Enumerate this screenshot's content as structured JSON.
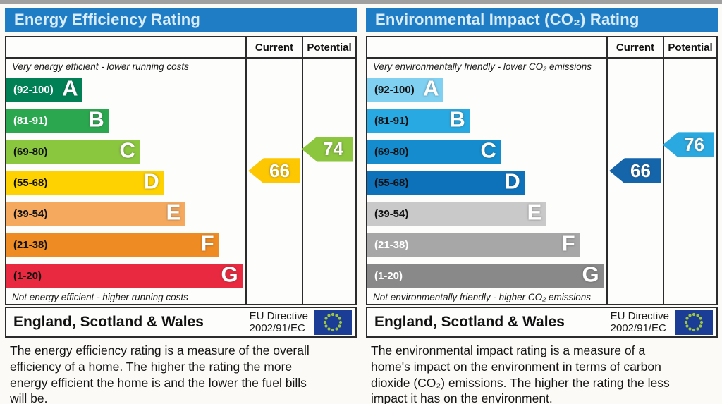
{
  "charts": [
    {
      "title": "Energy Efficiency Rating",
      "header": {
        "current": "Current",
        "potential": "Potential"
      },
      "top_note": "Very energy efficient - lower running costs",
      "bottom_note": "Not energy efficient - higher running costs",
      "bands": [
        {
          "letter": "A",
          "range": "(92-100)",
          "min": 92,
          "max": 100,
          "color": "#008054",
          "text_color": "#ffffff",
          "width_pct": 32
        },
        {
          "letter": "B",
          "range": "(81-91)",
          "min": 81,
          "max": 91,
          "color": "#2ba84f",
          "text_color": "#ffffff",
          "width_pct": 43
        },
        {
          "letter": "C",
          "range": "(69-80)",
          "min": 69,
          "max": 80,
          "color": "#8bc63f",
          "text_color": "#111111",
          "width_pct": 56
        },
        {
          "letter": "D",
          "range": "(55-68)",
          "min": 55,
          "max": 68,
          "color": "#fed200",
          "text_color": "#111111",
          "width_pct": 66
        },
        {
          "letter": "E",
          "range": "(39-54)",
          "min": 39,
          "max": 54,
          "color": "#f4a95f",
          "text_color": "#111111",
          "width_pct": 75
        },
        {
          "letter": "F",
          "range": "(21-38)",
          "min": 21,
          "max": 38,
          "color": "#ee8b22",
          "text_color": "#111111",
          "width_pct": 89
        },
        {
          "letter": "G",
          "range": "(1-20)",
          "min": 1,
          "max": 20,
          "color": "#e8293f",
          "text_color": "#111111",
          "width_pct": 99
        }
      ],
      "current": {
        "value": 66,
        "band": "D",
        "color": "#fdc702"
      },
      "potential": {
        "value": 74,
        "band": "C",
        "color": "#8cc63f"
      },
      "footer": {
        "region": "England, Scotland & Wales",
        "directive_line1": "EU Directive",
        "directive_line2": "2002/91/EC"
      },
      "description": "The energy efficiency rating is a measure of the overall efficiency of a home. The higher the rating the more energy efficient the home is and the lower the fuel bills will be."
    },
    {
      "title": "Environmental Impact (CO₂) Rating",
      "header": {
        "current": "Current",
        "potential": "Potential"
      },
      "top_note": "Very environmentally friendly - lower CO₂ emissions",
      "bottom_note": "Not environmentally friendly - higher CO₂ emissions",
      "bands": [
        {
          "letter": "A",
          "range": "(92-100)",
          "min": 92,
          "max": 100,
          "color": "#7fd0f1",
          "text_color": "#111111",
          "width_pct": 32
        },
        {
          "letter": "B",
          "range": "(81-91)",
          "min": 81,
          "max": 91,
          "color": "#29a9e1",
          "text_color": "#111111",
          "width_pct": 43
        },
        {
          "letter": "C",
          "range": "(69-80)",
          "min": 69,
          "max": 80,
          "color": "#148ccd",
          "text_color": "#111111",
          "width_pct": 56
        },
        {
          "letter": "D",
          "range": "(55-68)",
          "min": 55,
          "max": 68,
          "color": "#0e72bb",
          "text_color": "#111111",
          "width_pct": 66
        },
        {
          "letter": "E",
          "range": "(39-54)",
          "min": 39,
          "max": 54,
          "color": "#c9c9c9",
          "text_color": "#111111",
          "width_pct": 75
        },
        {
          "letter": "F",
          "range": "(21-38)",
          "min": 21,
          "max": 38,
          "color": "#a7a7a7",
          "text_color": "#ffffff",
          "width_pct": 89
        },
        {
          "letter": "G",
          "range": "(1-20)",
          "min": 1,
          "max": 20,
          "color": "#898989",
          "text_color": "#ffffff",
          "width_pct": 99
        }
      ],
      "current": {
        "value": 66,
        "band": "D",
        "color": "#1565ab"
      },
      "potential": {
        "value": 76,
        "band": "C",
        "color": "#2aa9e0"
      },
      "footer": {
        "region": "England, Scotland & Wales",
        "directive_line1": "EU Directive",
        "directive_line2": "2002/91/EC"
      },
      "description": "The environmental impact rating is a measure of a home's impact on the environment in terms of carbon dioxide (CO₂) emissions. The higher the rating the less impact it has on the environment."
    }
  ],
  "eu_flag": {
    "background": "#1c3d96",
    "star_color": "#9dc53f"
  },
  "chart_data": [
    {
      "type": "bar",
      "title": "Energy Efficiency Rating",
      "categories": [
        "A (92-100)",
        "B (81-91)",
        "C (69-80)",
        "D (55-68)",
        "E (39-54)",
        "F (21-38)",
        "G (1-20)"
      ],
      "series": [
        {
          "name": "Current",
          "values": [
            66
          ]
        },
        {
          "name": "Potential",
          "values": [
            74
          ]
        }
      ],
      "current_rating": {
        "value": 66,
        "band": "D"
      },
      "potential_rating": {
        "value": 74,
        "band": "C"
      },
      "scale": [
        1,
        100
      ],
      "xlabel": "",
      "ylabel": "",
      "legend_position": "table-columns-right",
      "annotations": [
        "Very energy efficient - lower running costs",
        "Not energy efficient - higher running costs",
        "England, Scotland & Wales",
        "EU Directive 2002/91/EC"
      ]
    },
    {
      "type": "bar",
      "title": "Environmental Impact (CO₂) Rating",
      "categories": [
        "A (92-100)",
        "B (81-91)",
        "C (69-80)",
        "D (55-68)",
        "E (39-54)",
        "F (21-38)",
        "G (1-20)"
      ],
      "series": [
        {
          "name": "Current",
          "values": [
            66
          ]
        },
        {
          "name": "Potential",
          "values": [
            76
          ]
        }
      ],
      "current_rating": {
        "value": 66,
        "band": "D"
      },
      "potential_rating": {
        "value": 76,
        "band": "C"
      },
      "scale": [
        1,
        100
      ],
      "xlabel": "",
      "ylabel": "",
      "legend_position": "table-columns-right",
      "annotations": [
        "Very environmentally friendly - lower CO₂ emissions",
        "Not environmentally friendly - higher CO₂ emissions",
        "England, Scotland & Wales",
        "EU Directive 2002/91/EC"
      ]
    }
  ]
}
